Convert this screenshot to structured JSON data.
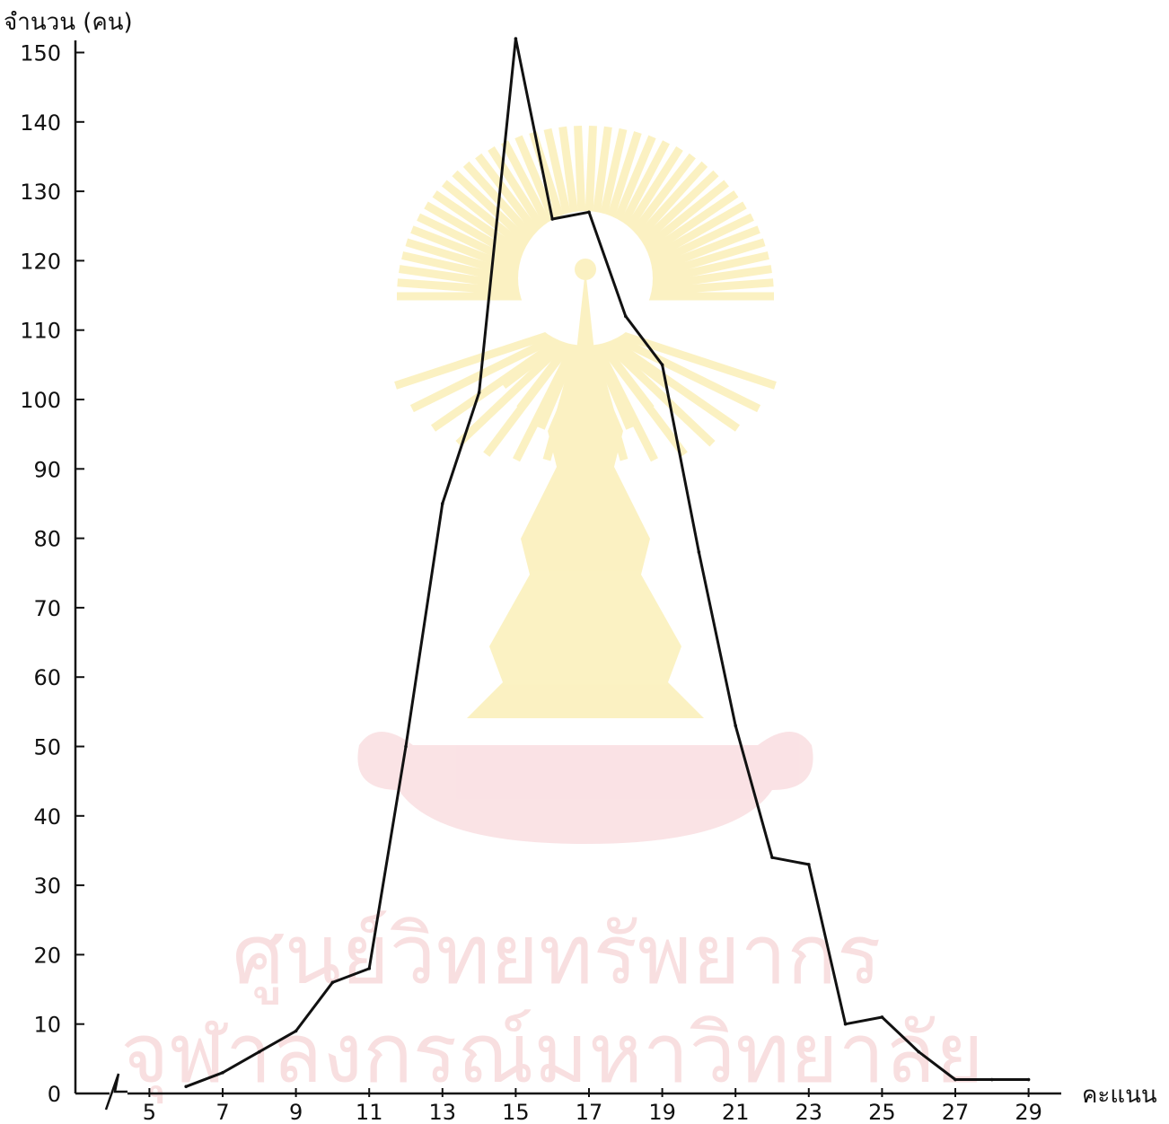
{
  "chart_data": {
    "type": "line",
    "title": "",
    "ylabel": "จำนวน (คน)",
    "xlabel": "คะแนน",
    "x": [
      6,
      7,
      8,
      9,
      10,
      11,
      12,
      13,
      14,
      15,
      16,
      17,
      18,
      19,
      20,
      21,
      22,
      23,
      24,
      25,
      26,
      27,
      28,
      29
    ],
    "series": [
      {
        "values": [
          1,
          3,
          6,
          9,
          16,
          18,
          50,
          85,
          101,
          152,
          126,
          127,
          112,
          105,
          78,
          53,
          34,
          33,
          10,
          11,
          6,
          2,
          2,
          2
        ]
      }
    ],
    "xticks": [
      5,
      7,
      9,
      11,
      13,
      15,
      17,
      19,
      21,
      23,
      25,
      27,
      29
    ],
    "yticks": [
      0,
      10,
      20,
      30,
      40,
      50,
      60,
      70,
      80,
      90,
      100,
      110,
      120,
      130,
      140,
      150
    ],
    "xlim": [
      3,
      31
    ],
    "ylim": [
      0,
      152
    ],
    "axis_break": "x",
    "grid": false,
    "line_color": "#111111",
    "watermark": {
      "line1": "ศูนย์วิทยทรัพยากร",
      "line2": "จุฬาลงกรณ์มหาวิทยาลัย",
      "color": "#f3c5c8",
      "emblem_color": "#f7e27a"
    }
  }
}
